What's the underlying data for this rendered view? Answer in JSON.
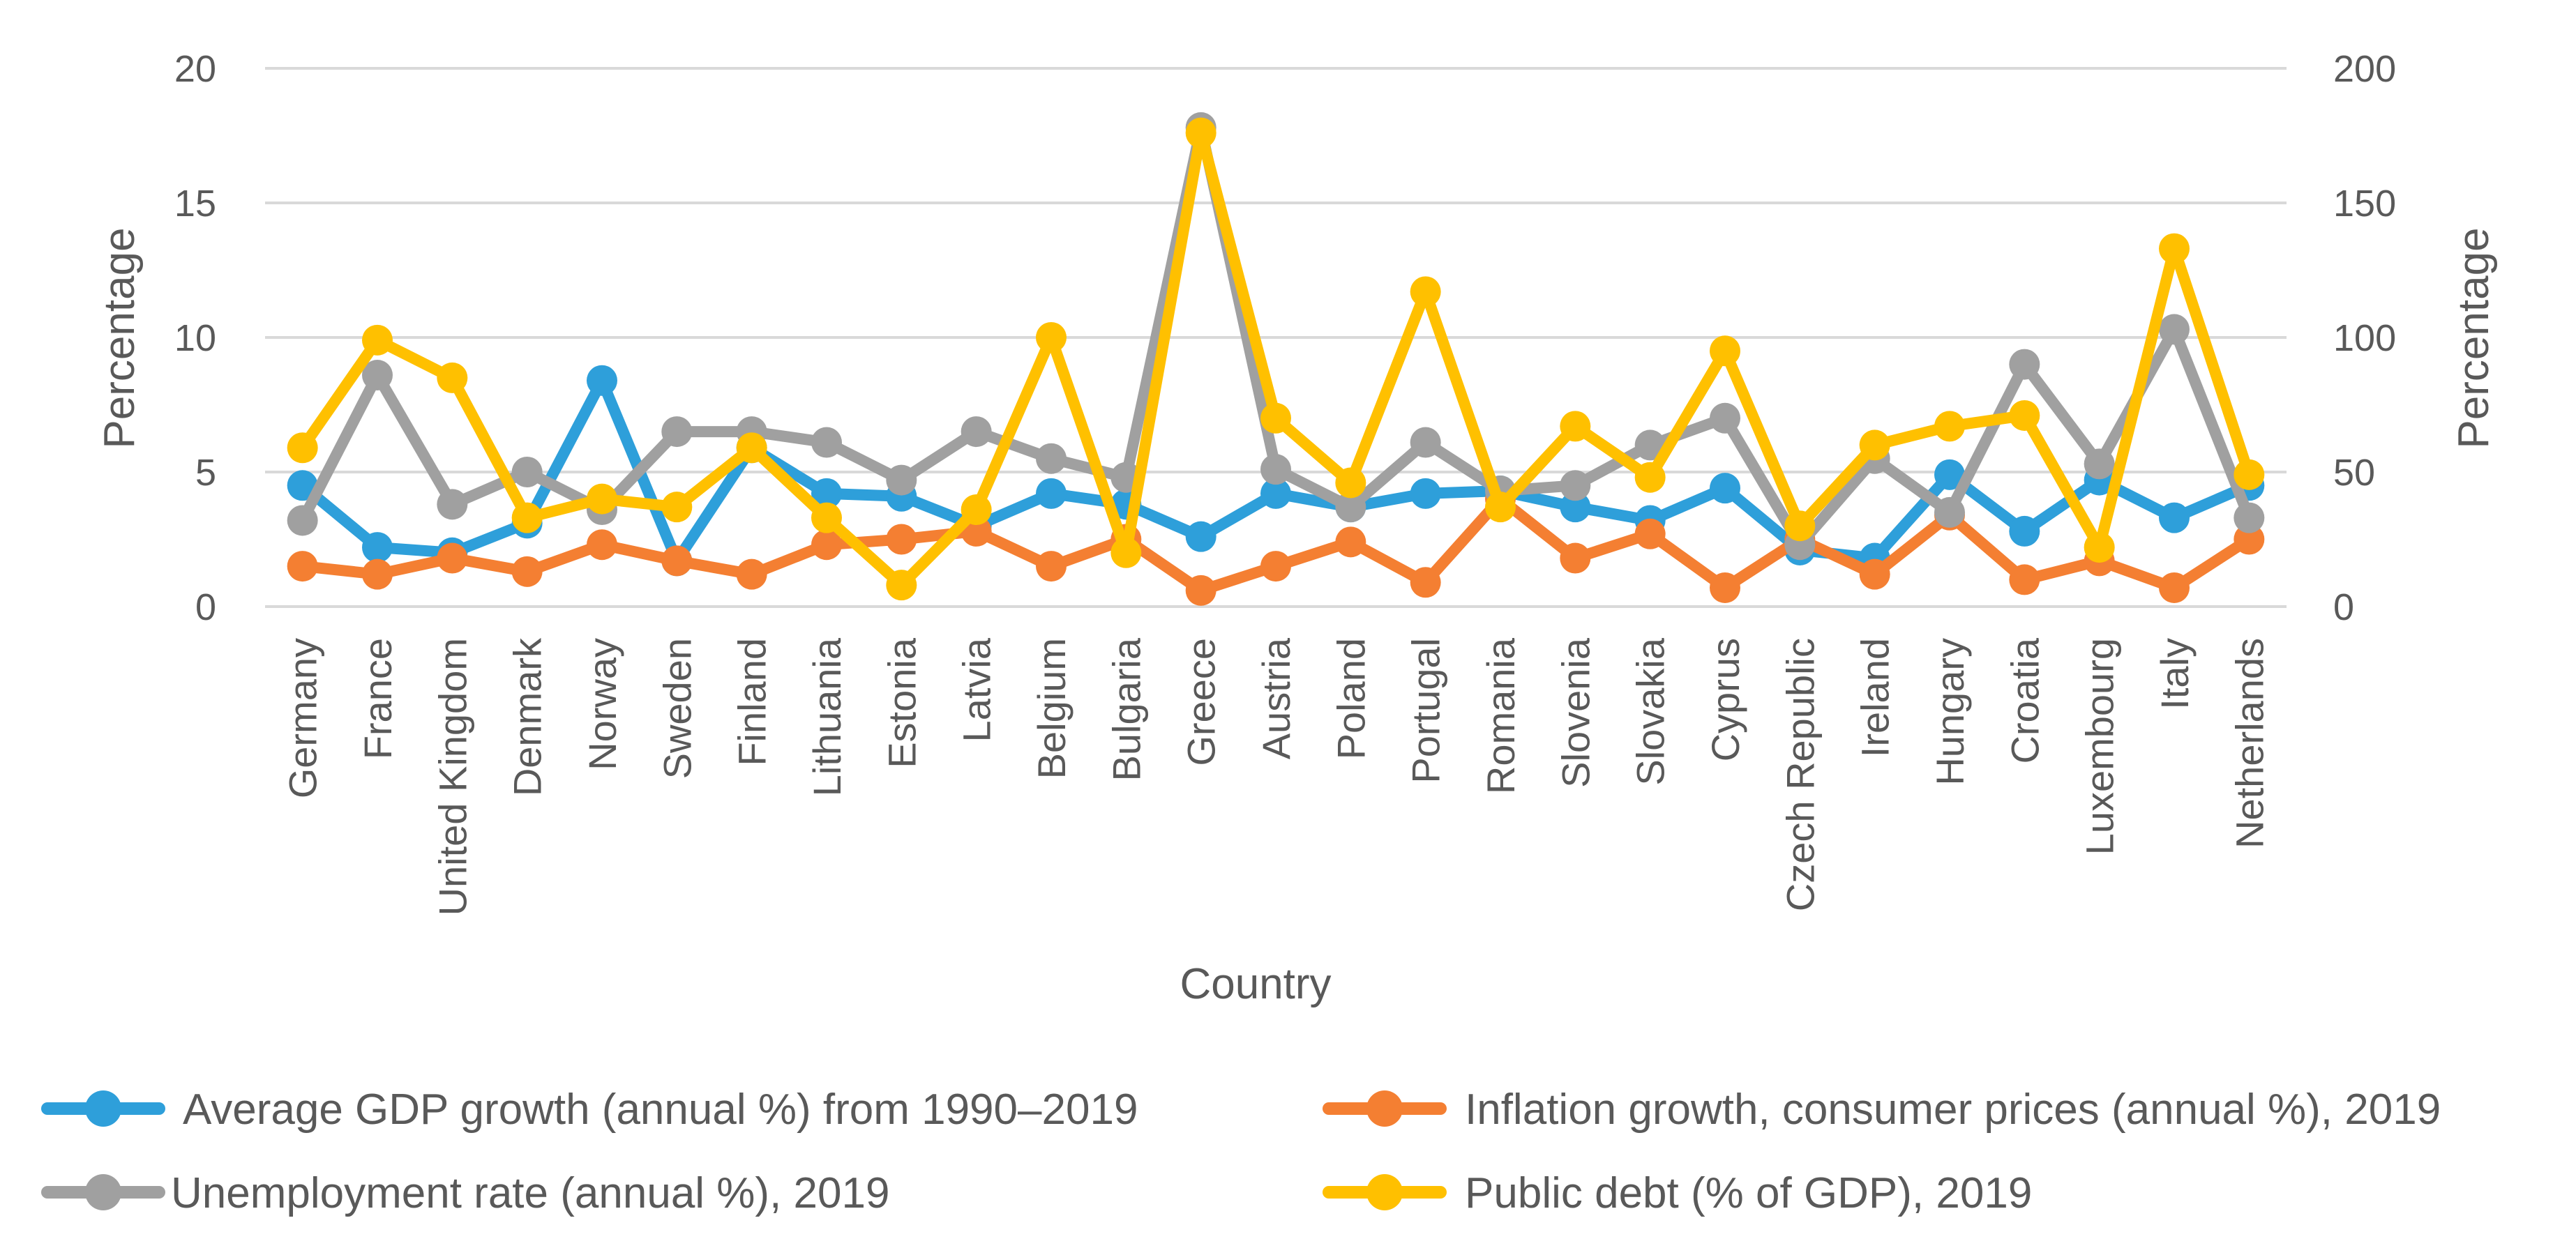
{
  "chart_data": {
    "type": "line",
    "categories": [
      "Germany",
      "France",
      "United Kingdom",
      "Denmark",
      "Norway",
      "Sweden",
      "Finland",
      "Lithuania",
      "Estonia",
      "Latvia",
      "Belgium",
      "Bulgaria",
      "Greece",
      "Austria",
      "Poland",
      "Portugal",
      "Romania",
      "Slovenia",
      "Slovakia",
      "Cyprus",
      "Czech Republic",
      "Ireland",
      "Hungary",
      "Croatia",
      "Luxembourg",
      "Italy",
      "Netherlands"
    ],
    "xlabel": "Country",
    "ylabel": "Percentage",
    "y2label": "Percentage",
    "ylim": [
      0,
      20
    ],
    "y2lim": [
      0,
      200
    ],
    "yticks": [
      0,
      5,
      10,
      15,
      20
    ],
    "y2ticks": [
      0,
      50,
      100,
      150,
      200
    ],
    "grid": true,
    "legend_position": "bottom",
    "series": [
      {
        "name": "Average GDP growth (annual %) from 1990–2019",
        "axis": "left",
        "color": "#2E9FDA",
        "values": [
          4.5,
          2.2,
          2.0,
          3.1,
          8.4,
          1.7,
          5.9,
          4.2,
          4.1,
          3.0,
          4.2,
          3.8,
          2.6,
          4.2,
          3.7,
          4.2,
          4.3,
          3.7,
          3.2,
          4.4,
          2.1,
          1.8,
          4.9,
          2.8,
          4.7,
          3.3,
          4.5
        ]
      },
      {
        "name": "Inflation growth, consumer prices (annual %), 2019",
        "axis": "left",
        "color": "#F47F32",
        "values": [
          1.5,
          1.2,
          1.8,
          1.3,
          2.3,
          1.7,
          1.2,
          2.3,
          2.5,
          2.8,
          1.5,
          2.5,
          0.6,
          1.5,
          2.4,
          0.9,
          4.0,
          1.8,
          2.7,
          0.7,
          2.5,
          1.2,
          3.4,
          1.0,
          1.7,
          0.7,
          2.5
        ]
      },
      {
        "name": "Unemployment rate (annual %), 2019",
        "axis": "left",
        "color": "#A0A0A0",
        "values": [
          3.2,
          8.6,
          3.8,
          5.0,
          3.6,
          6.5,
          6.5,
          6.1,
          4.7,
          6.5,
          5.5,
          4.8,
          17.8,
          5.1,
          3.7,
          6.1,
          4.3,
          4.5,
          6.0,
          7.0,
          2.3,
          5.5,
          3.5,
          9.0,
          5.3,
          10.3,
          3.3
        ]
      },
      {
        "name": "Public debt (% of GDP), 2019",
        "axis": "right",
        "color": "#FFC000",
        "values": [
          59,
          99,
          85,
          33,
          40,
          37,
          59,
          33,
          8,
          36,
          100,
          20,
          176,
          70,
          46,
          117,
          37,
          67,
          48,
          95,
          30,
          60,
          67,
          71,
          22,
          133,
          49
        ]
      }
    ]
  }
}
